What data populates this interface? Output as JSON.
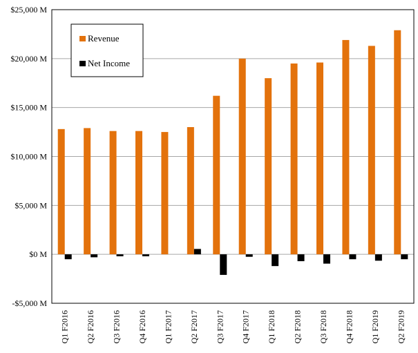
{
  "chart_data": {
    "type": "bar",
    "categories": [
      "Q1 F2016",
      "Q2 F2016",
      "Q3 F2016",
      "Q4 F2016",
      "Q1 F2017",
      "Q2 F2017",
      "Q3 F2017",
      "Q4 F2017",
      "Q1 F2018",
      "Q2 F2018",
      "Q3 F2018",
      "Q4 F2018",
      "Q1 F2019",
      "Q2 F2019"
    ],
    "series": [
      {
        "name": "Revenue",
        "color": "#E3720C",
        "values": [
          12800,
          12900,
          12600,
          12600,
          12500,
          13000,
          16200,
          20000,
          18000,
          19500,
          19600,
          21900,
          21300,
          22900
        ]
      },
      {
        "name": "Net Income",
        "color": "#000000",
        "values": [
          -500,
          -300,
          -200,
          -200,
          0,
          550,
          -2100,
          -250,
          -1200,
          -700,
          -950,
          -500,
          -650,
          -500
        ]
      }
    ],
    "ylim": [
      -5000,
      25000
    ],
    "yticks": [
      -5000,
      0,
      5000,
      10000,
      15000,
      20000,
      25000
    ],
    "ytick_labels": [
      "-$5,000 M",
      "$0 M",
      "$5,000 M",
      "$10,000 M",
      "$15,000 M",
      "$20,000 M",
      "$25,000 M"
    ],
    "grid": true,
    "legend_position": "top-left",
    "title": "",
    "xlabel": "",
    "ylabel": ""
  }
}
